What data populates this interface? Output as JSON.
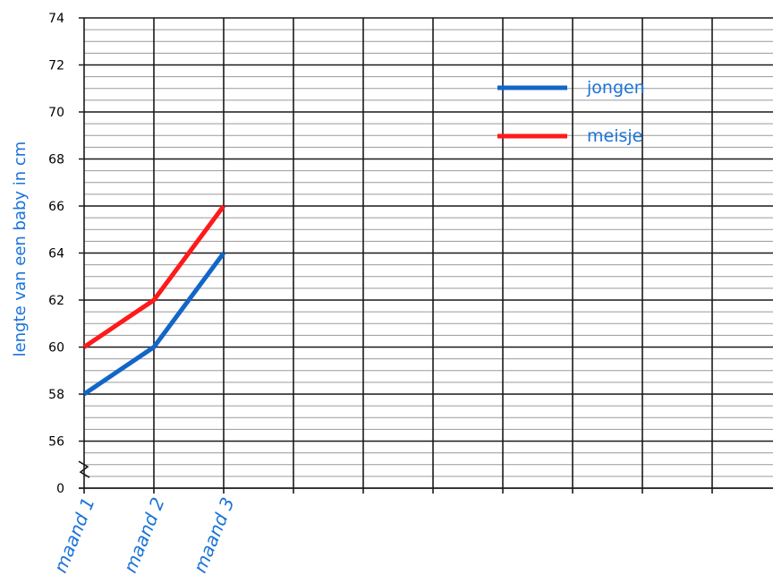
{
  "chart_data": {
    "type": "line",
    "categories": [
      "maand 1",
      "maand 2",
      "maand 3"
    ],
    "series": [
      {
        "name": "jongen",
        "values": [
          58,
          60,
          64
        ],
        "color": "#1266c8"
      },
      {
        "name": "meisje",
        "values": [
          60,
          62,
          66
        ],
        "color": "#ff1a1a"
      }
    ],
    "ylabel": "lengte van een baby in cm",
    "xlabel": "",
    "ylim": [
      56,
      74
    ],
    "y_ticks": [
      "74",
      "72",
      "70",
      "68",
      "66",
      "64",
      "62",
      "60",
      "58",
      "56"
    ],
    "y_break_label": "0",
    "axis_break": true,
    "grid": true,
    "legend_position": "top-right",
    "label_color": "#1a73d9"
  }
}
